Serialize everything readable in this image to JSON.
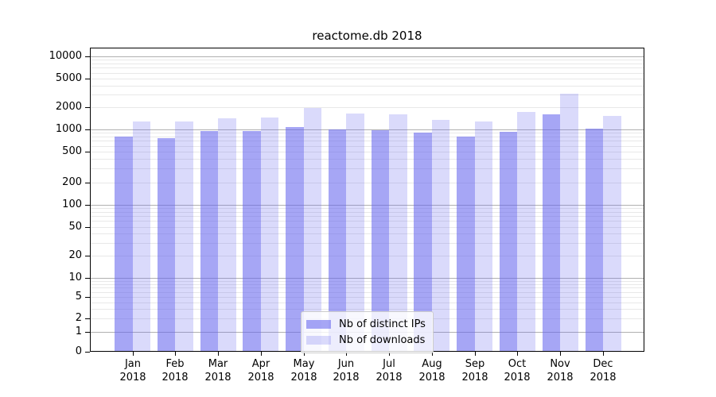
{
  "chart_data": {
    "type": "bar",
    "title": "reactome.db 2018",
    "categories": [
      "Jan",
      "Feb",
      "Mar",
      "Apr",
      "May",
      "Jun",
      "Jul",
      "Aug",
      "Sep",
      "Oct",
      "Nov",
      "Dec"
    ],
    "category_year": "2018",
    "series": [
      {
        "name": "Nb of distinct IPs",
        "color": "#6666ee",
        "alpha": 0.58,
        "values": [
          800,
          760,
          950,
          950,
          1080,
          1000,
          975,
          905,
          800,
          930,
          1600,
          1025
        ]
      },
      {
        "name": "Nb of downloads",
        "color": "#6666ee",
        "alpha": 0.24,
        "values": [
          1280,
          1280,
          1420,
          1450,
          1950,
          1640,
          1600,
          1350,
          1290,
          1720,
          3050,
          1520
        ]
      }
    ],
    "yscale": "symlog",
    "ylim": [
      0,
      12500
    ],
    "y_ticks": [
      0,
      1,
      2,
      5,
      10,
      20,
      50,
      100,
      200,
      500,
      1000,
      2000,
      5000,
      10000
    ],
    "grid": true,
    "legend_position": "lower center",
    "colors": {
      "major_grid": "#b0b0b0",
      "minor_grid": "#e8e8e8",
      "axis": "#000000",
      "text": "#000000",
      "background": "#ffffff"
    }
  },
  "legend": {
    "items": [
      {
        "label": "Nb of distinct IPs"
      },
      {
        "label": "Nb of downloads"
      }
    ]
  }
}
